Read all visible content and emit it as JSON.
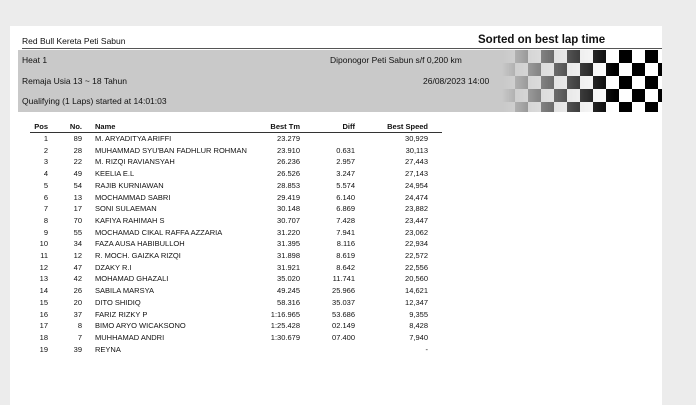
{
  "header": {
    "event": "Red Bull Kereta Peti Sabun",
    "sort_note": "Sorted on best lap time"
  },
  "info": {
    "heat": "Heat 1",
    "track": "Diponogor Peti Sabun s/f 0,200 km",
    "class": "Remaja Usia 13 ~ 18 Tahun",
    "datetime": "26/08/2023 14:00",
    "session": "Qualifying (1 Laps) started at 14:01:03"
  },
  "table": {
    "columns": {
      "pos": "Pos",
      "no": "No.",
      "name": "Name",
      "best_tm": "Best Tm",
      "diff": "Diff",
      "best_speed": "Best Speed"
    },
    "rows": [
      {
        "pos": "1",
        "no": "89",
        "name": "M. ARYADITYA ARIFFI",
        "best_tm": "23.279",
        "best_speed": "30,929"
      },
      {
        "pos": "2",
        "no": "28",
        "name": "MUHAMMAD SYU'BAN FADHLUR ROHMAN",
        "best_tm": "23.910",
        "diff": "0.631",
        "best_speed": "30,113"
      },
      {
        "pos": "3",
        "no": "22",
        "name": "M. RIZQI RAVIANSYAH",
        "best_tm": "26.236",
        "diff": "2.957",
        "best_speed": "27,443"
      },
      {
        "pos": "4",
        "no": "49",
        "name": "KEELIA E.L",
        "best_tm": "26.526",
        "diff": "3.247",
        "best_speed": "27,143"
      },
      {
        "pos": "5",
        "no": "54",
        "name": "RAJIB KURNIAWAN",
        "best_tm": "28.853",
        "diff": "5.574",
        "best_speed": "24,954"
      },
      {
        "pos": "6",
        "no": "13",
        "name": "MOCHAMMAD SABRI",
        "best_tm": "29.419",
        "diff": "6.140",
        "best_speed": "24,474"
      },
      {
        "pos": "7",
        "no": "17",
        "name": "SONI SULAEMAN",
        "best_tm": "30.148",
        "diff": "6.869",
        "best_speed": "23,882"
      },
      {
        "pos": "8",
        "no": "70",
        "name": "KAFIYA RAHIMAH S",
        "best_tm": "30.707",
        "diff": "7.428",
        "best_speed": "23,447"
      },
      {
        "pos": "9",
        "no": "55",
        "name": "MOCHAMAD CIKAL RAFFA AZZARIA",
        "best_tm": "31.220",
        "diff": "7.941",
        "best_speed": "23,062"
      },
      {
        "pos": "10",
        "no": "34",
        "name": "FAZA AUSA HABIBULLOH",
        "best_tm": "31.395",
        "diff": "8.116",
        "best_speed": "22,934"
      },
      {
        "pos": "11",
        "no": "12",
        "name": "R. MOCH. GAIZKA RIZQI",
        "best_tm": "31.898",
        "diff": "8.619",
        "best_speed": "22,572"
      },
      {
        "pos": "12",
        "no": "47",
        "name": "DZAKY R.I",
        "best_tm": "31.921",
        "diff": "8.642",
        "best_speed": "22,556"
      },
      {
        "pos": "13",
        "no": "42",
        "name": "MOHAMAD GHAZALI",
        "best_tm": "35.020",
        "diff": "11.741",
        "best_speed": "20,560"
      },
      {
        "pos": "14",
        "no": "26",
        "name": "SABILA MARSYA",
        "best_tm": "49.245",
        "diff": "25.966",
        "best_speed": "14,621"
      },
      {
        "pos": "15",
        "no": "20",
        "name": "DITO SHIDIQ",
        "best_tm": "58.316",
        "diff": "35.037",
        "best_speed": "12,347"
      },
      {
        "pos": "16",
        "no": "37",
        "name": "FARIZ RIZKY P",
        "best_tm": "1:16.965",
        "diff": "53.686",
        "best_speed": "9,355"
      },
      {
        "pos": "17",
        "no": "8",
        "name": "BIMO ARYO WICAKSONO",
        "best_tm": "1:25.428",
        "diff": "02.149",
        "best_speed": "8,428"
      },
      {
        "pos": "18",
        "no": "7",
        "name": "MUHHAMAD ANDRI",
        "best_tm": "1:30.679",
        "diff": "07.400",
        "best_speed": "7,940"
      },
      {
        "pos": "19",
        "no": "39",
        "name": "REYNA",
        "best_speed": "-"
      }
    ]
  }
}
